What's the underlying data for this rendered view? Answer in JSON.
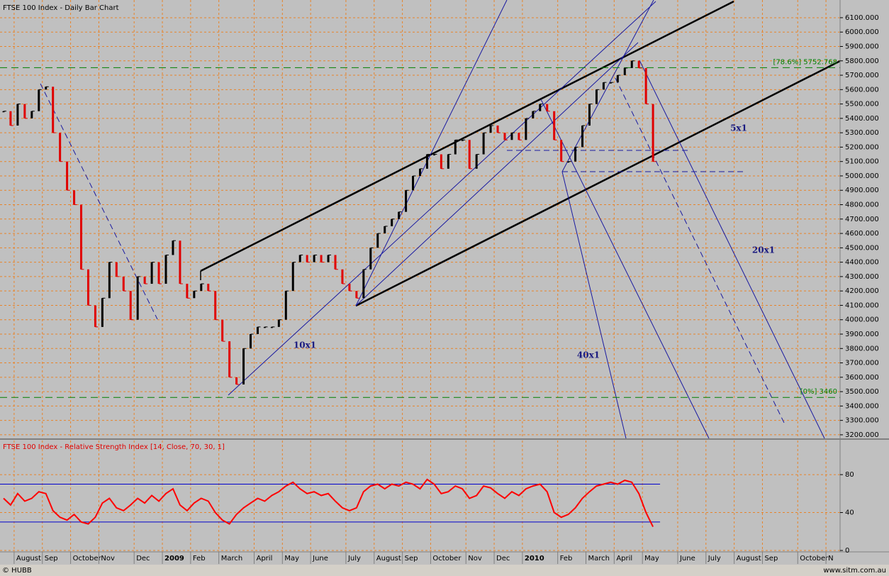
{
  "chart_data": [
    {
      "type": "bar",
      "title": "FTSE 100 Index - Daily Bar Chart",
      "categories": [
        null,
        null,
        "August",
        null,
        null,
        null,
        "Sep",
        null,
        null,
        null,
        "October",
        null,
        null,
        null,
        "Nov",
        null,
        null,
        null,
        null,
        "Dec",
        null,
        null,
        null,
        "2009",
        null,
        null,
        null,
        "Feb",
        null,
        null,
        null,
        "March",
        null,
        null,
        null,
        null,
        "April",
        null,
        null,
        null,
        "May",
        null,
        null,
        null,
        "June",
        null,
        null,
        null,
        null,
        "July",
        null,
        null,
        null,
        "August",
        null,
        null,
        null,
        "Sep",
        null,
        null,
        null,
        "October",
        null,
        null,
        null,
        null,
        "Nov",
        null,
        null,
        null,
        "Dec",
        null,
        null,
        null,
        "2010",
        null,
        null,
        null,
        null,
        "Feb",
        null,
        null,
        null,
        "March",
        null,
        null,
        null,
        "April",
        null,
        null,
        null,
        "May",
        null,
        null,
        null,
        null,
        "June",
        null,
        null,
        null,
        "July",
        null,
        null,
        null,
        "August",
        null,
        null,
        null,
        "Sep",
        null,
        null,
        null,
        null,
        "October",
        null,
        null,
        null,
        "N",
        null
      ],
      "values": [
        5450,
        5350,
        5500,
        5400,
        5450,
        5600,
        5620,
        5300,
        5100,
        4900,
        4800,
        4350,
        4100,
        3950,
        4150,
        4400,
        4300,
        4200,
        4000,
        4300,
        4250,
        4400,
        4250,
        4450,
        4550,
        4250,
        4150,
        4200,
        4250,
        4200,
        4000,
        3850,
        3600,
        3550,
        3800,
        3900,
        3950,
        3950,
        3950,
        4000,
        4200,
        4400,
        4450,
        4400,
        4450,
        4400,
        4450,
        4350,
        4250,
        4200,
        4150,
        4350,
        4500,
        4600,
        4650,
        4700,
        4750,
        4900,
        5000,
        5050,
        5150,
        5150,
        5050,
        5150,
        5250,
        5250,
        5050,
        5150,
        5300,
        5350,
        5300,
        5250,
        5300,
        5250,
        5400,
        5450,
        5500,
        5450,
        5250,
        5100,
        5100,
        5200,
        5350,
        5500,
        5600,
        5650,
        5650,
        5700,
        5750,
        5800,
        5750,
        5500,
        5100,
        null,
        null,
        null,
        null,
        null,
        null,
        null,
        null,
        null,
        null,
        null,
        null,
        null,
        null,
        null,
        null,
        null,
        null,
        null,
        null,
        null,
        null,
        null,
        null,
        null,
        null
      ],
      "up_color": "#000000",
      "down_color": "#e00000",
      "ylim": [
        3175,
        6223
      ],
      "yticks": [
        {
          "value": 3200,
          "label": "3200.000"
        },
        {
          "value": 3300,
          "label": "3300.000"
        },
        {
          "value": 3400,
          "label": "3400.000"
        },
        {
          "value": 3500,
          "label": "3500.000"
        },
        {
          "value": 3600,
          "label": "3600.000"
        },
        {
          "value": 3700,
          "label": "3700.000"
        },
        {
          "value": 3800,
          "label": "3800.000"
        },
        {
          "value": 3900,
          "label": "3900.000"
        },
        {
          "value": 4000,
          "label": "4000.000"
        },
        {
          "value": 4100,
          "label": "4100.000"
        },
        {
          "value": 4200,
          "label": "4200.000"
        },
        {
          "value": 4300,
          "label": "4300.000"
        },
        {
          "value": 4400,
          "label": "4400.000"
        },
        {
          "value": 4500,
          "label": "4500.000"
        },
        {
          "value": 4600,
          "label": "4600.000"
        },
        {
          "value": 4700,
          "label": "4700.000"
        },
        {
          "value": 4800,
          "label": "4800.000"
        },
        {
          "value": 4900,
          "label": "4900.000"
        },
        {
          "value": 5000,
          "label": "5000.000"
        },
        {
          "value": 5100,
          "label": "5100.000"
        },
        {
          "value": 5200,
          "label": "5200.000"
        },
        {
          "value": 5300,
          "label": "5300.000"
        },
        {
          "value": 5400,
          "label": "5400.000"
        },
        {
          "value": 5500,
          "label": "5500.000"
        },
        {
          "value": 5600,
          "label": "5600.000"
        },
        {
          "value": 5700,
          "label": "5700.000"
        },
        {
          "value": 5800,
          "label": "5800.000"
        },
        {
          "value": 5900,
          "label": "5900.000"
        },
        {
          "value": 6000,
          "label": "6000.000"
        },
        {
          "value": 6100,
          "label": "6100.000"
        }
      ],
      "grid": true,
      "levels": [
        {
          "value": 5752.768,
          "label": "[78.6%] 5752.768"
        },
        {
          "value": 3460,
          "label": "[0%] 3460"
        }
      ],
      "level_color": "#008000",
      "annotations": [
        "10x1",
        "40x1",
        "5x1",
        "20x1"
      ]
    },
    {
      "type": "line",
      "title": "FTSE 100 Index - Relative Strength Index [14, Close, 70, 30, 1]",
      "values": [
        55,
        48,
        60,
        52,
        55,
        62,
        60,
        42,
        35,
        32,
        38,
        30,
        28,
        35,
        50,
        55,
        45,
        42,
        48,
        55,
        50,
        58,
        52,
        60,
        65,
        48,
        42,
        50,
        55,
        52,
        40,
        32,
        28,
        38,
        45,
        50,
        55,
        52,
        58,
        62,
        68,
        72,
        65,
        60,
        62,
        58,
        60,
        52,
        45,
        42,
        45,
        62,
        68,
        70,
        65,
        70,
        68,
        72,
        70,
        65,
        75,
        70,
        60,
        62,
        68,
        65,
        55,
        58,
        68,
        66,
        60,
        55,
        62,
        58,
        65,
        68,
        70,
        62,
        40,
        35,
        38,
        45,
        55,
        62,
        68,
        70,
        72,
        70,
        74,
        72,
        60,
        40,
        25,
        null,
        null,
        null,
        null,
        null,
        null,
        null,
        null,
        null,
        null,
        null,
        null,
        null,
        null,
        null,
        null,
        null,
        null,
        null,
        null,
        null,
        null,
        null,
        null,
        null,
        null
      ],
      "color": "#ff0000",
      "bands": [
        70,
        30
      ],
      "band_color": "#0000cc",
      "ylim": [
        -1.5,
        116
      ],
      "yticks": [
        0,
        40,
        80
      ],
      "grid": true
    }
  ],
  "footer": {
    "left": "© HUBB",
    "right": "www.sitm.com.au"
  }
}
